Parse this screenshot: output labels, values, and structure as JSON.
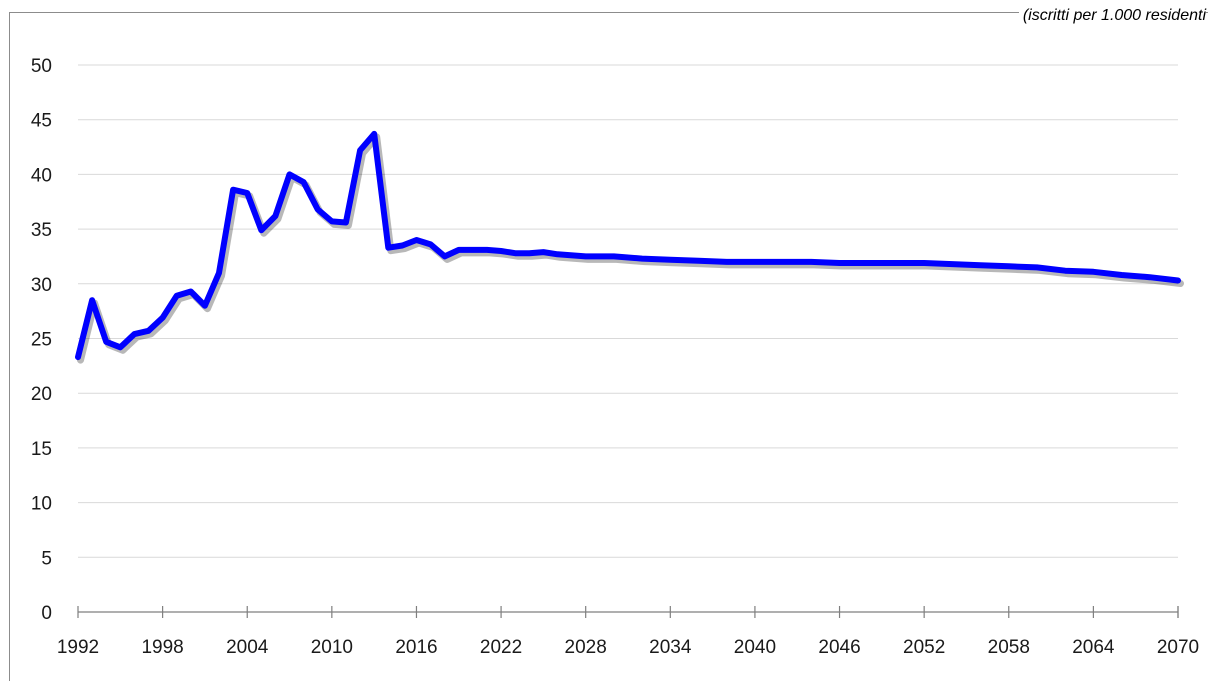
{
  "unit_note": "(iscritti per 1.000 residenti",
  "chart_data": {
    "type": "line",
    "title": "",
    "xlabel": "",
    "ylabel": "",
    "ylim": [
      0,
      50
    ],
    "xlim": [
      1992,
      2070
    ],
    "y_ticks": [
      0,
      5,
      10,
      15,
      20,
      25,
      30,
      35,
      40,
      45,
      50
    ],
    "x_tick_labels": [
      "1992",
      "1998",
      "2004",
      "2010",
      "2016",
      "2022",
      "2028",
      "2034",
      "2040",
      "2046",
      "2052",
      "2058",
      "2064",
      "2070"
    ],
    "grid": true,
    "legend": "none",
    "series": [
      {
        "color": "#0000ff",
        "x": [
          1992,
          1993,
          1994,
          1995,
          1996,
          1997,
          1998,
          1999,
          2000,
          2001,
          2002,
          2003,
          2004,
          2005,
          2006,
          2007,
          2008,
          2009,
          2010,
          2011,
          2012,
          2013,
          2014,
          2015,
          2016,
          2017,
          2018,
          2019,
          2020,
          2021,
          2022,
          2023,
          2024,
          2025,
          2026,
          2028,
          2030,
          2032,
          2034,
          2036,
          2038,
          2040,
          2042,
          2044,
          2046,
          2048,
          2050,
          2052,
          2054,
          2056,
          2058,
          2060,
          2062,
          2064,
          2066,
          2068,
          2070
        ],
        "y": [
          23.3,
          28.5,
          24.7,
          24.2,
          25.4,
          25.7,
          26.9,
          28.9,
          29.3,
          28.0,
          31.0,
          38.6,
          38.3,
          34.9,
          36.2,
          40.0,
          39.3,
          36.8,
          35.7,
          35.6,
          42.2,
          43.7,
          33.3,
          33.5,
          34.0,
          33.6,
          32.5,
          33.1,
          33.1,
          33.1,
          33.0,
          32.8,
          32.8,
          32.9,
          32.7,
          32.5,
          32.5,
          32.3,
          32.2,
          32.1,
          32.0,
          32.0,
          32.0,
          32.0,
          31.9,
          31.9,
          31.9,
          31.9,
          31.8,
          31.7,
          31.6,
          31.5,
          31.2,
          31.1,
          30.8,
          30.6,
          30.3
        ]
      }
    ]
  }
}
